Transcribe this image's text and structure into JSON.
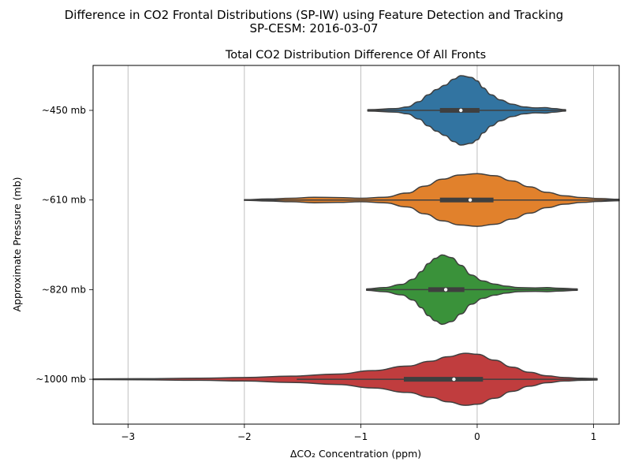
{
  "figure": {
    "suptitle_line1": "Difference in CO2 Frontal Distributions (SP-IW) using Feature Detection and Tracking",
    "suptitle_line2": "SP-CESM: 2016-03-07"
  },
  "chart_data": {
    "type": "violin",
    "title": "Total CO2 Distribution Difference Of All Fronts",
    "xlabel": "ΔCO₂ Concentration (ppm)",
    "ylabel": "Approximate Pressure (mb)",
    "xlim": [
      -3.3,
      1.22
    ],
    "xticks": [
      -3,
      -2,
      -1,
      0,
      1
    ],
    "xtick_labels": [
      "−3",
      "−2",
      "−1",
      "0",
      "1"
    ],
    "grid": "vertical",
    "categories": [
      "~450 mb",
      "~610 mb",
      "~820 mb",
      "~1000 mb"
    ],
    "series": [
      {
        "category": "~450 mb",
        "color": "#3274a1",
        "profile": [
          [
            -0.94,
            0.02
          ],
          [
            -0.7,
            0.05
          ],
          [
            -0.6,
            0.1
          ],
          [
            -0.5,
            0.25
          ],
          [
            -0.42,
            0.45
          ],
          [
            -0.35,
            0.6
          ],
          [
            -0.28,
            0.72
          ],
          [
            -0.2,
            0.9
          ],
          [
            -0.14,
            1.0
          ],
          [
            -0.05,
            0.95
          ],
          [
            0.0,
            0.85
          ],
          [
            0.05,
            0.65
          ],
          [
            0.12,
            0.45
          ],
          [
            0.2,
            0.3
          ],
          [
            0.3,
            0.18
          ],
          [
            0.4,
            0.1
          ],
          [
            0.5,
            0.07
          ],
          [
            0.58,
            0.08
          ],
          [
            0.66,
            0.05
          ],
          [
            0.76,
            0.02
          ]
        ],
        "q1": -0.32,
        "median": -0.14,
        "q3": 0.02,
        "whisker_low": -0.94,
        "whisker_high": 0.76
      },
      {
        "category": "~610 mb",
        "color": "#e1812c",
        "profile": [
          [
            -2.0,
            0.01
          ],
          [
            -1.8,
            0.03
          ],
          [
            -1.6,
            0.05
          ],
          [
            -1.4,
            0.08
          ],
          [
            -1.2,
            0.07
          ],
          [
            -1.0,
            0.05
          ],
          [
            -0.8,
            0.08
          ],
          [
            -0.6,
            0.2
          ],
          [
            -0.45,
            0.4
          ],
          [
            -0.3,
            0.6
          ],
          [
            -0.15,
            0.72
          ],
          [
            0.0,
            0.76
          ],
          [
            0.15,
            0.7
          ],
          [
            0.3,
            0.55
          ],
          [
            0.45,
            0.38
          ],
          [
            0.6,
            0.22
          ],
          [
            0.75,
            0.12
          ],
          [
            0.9,
            0.07
          ],
          [
            1.05,
            0.04
          ],
          [
            1.22,
            0.02
          ]
        ],
        "q1": -0.32,
        "median": -0.06,
        "q3": 0.14,
        "whisker_low": -2.0,
        "whisker_high": 1.22
      },
      {
        "category": "~820 mb",
        "color": "#3a923a",
        "profile": [
          [
            -0.95,
            0.02
          ],
          [
            -0.8,
            0.06
          ],
          [
            -0.65,
            0.15
          ],
          [
            -0.55,
            0.3
          ],
          [
            -0.48,
            0.52
          ],
          [
            -0.42,
            0.75
          ],
          [
            -0.36,
            0.9
          ],
          [
            -0.3,
            1.0
          ],
          [
            -0.22,
            0.92
          ],
          [
            -0.14,
            0.7
          ],
          [
            -0.05,
            0.42
          ],
          [
            0.05,
            0.25
          ],
          [
            0.15,
            0.16
          ],
          [
            0.25,
            0.1
          ],
          [
            0.35,
            0.06
          ],
          [
            0.5,
            0.05
          ],
          [
            0.6,
            0.06
          ],
          [
            0.7,
            0.04
          ],
          [
            0.86,
            0.02
          ]
        ],
        "q1": -0.42,
        "median": -0.27,
        "q3": -0.11,
        "whisker_low": -0.95,
        "whisker_high": 0.86
      },
      {
        "category": "~1000 mb",
        "color": "#c03d3e",
        "profile": [
          [
            -3.3,
            0.01
          ],
          [
            -2.9,
            0.015
          ],
          [
            -2.4,
            0.03
          ],
          [
            -2.0,
            0.05
          ],
          [
            -1.6,
            0.09
          ],
          [
            -1.2,
            0.15
          ],
          [
            -0.9,
            0.25
          ],
          [
            -0.6,
            0.38
          ],
          [
            -0.4,
            0.52
          ],
          [
            -0.25,
            0.65
          ],
          [
            -0.1,
            0.75
          ],
          [
            0.0,
            0.72
          ],
          [
            0.15,
            0.55
          ],
          [
            0.3,
            0.35
          ],
          [
            0.45,
            0.2
          ],
          [
            0.6,
            0.1
          ],
          [
            0.75,
            0.05
          ],
          [
            0.9,
            0.03
          ],
          [
            1.03,
            0.02
          ]
        ],
        "q1": -0.63,
        "median": -0.2,
        "q3": 0.05,
        "whisker_low": -1.55,
        "whisker_high": 1.03
      }
    ]
  }
}
